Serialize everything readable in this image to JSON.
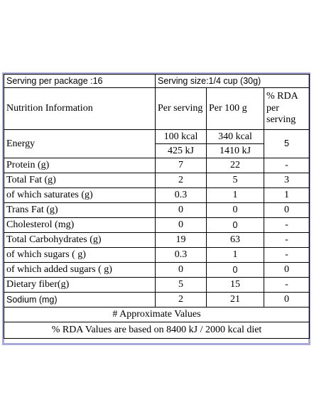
{
  "header": {
    "serving_per_package": "Serving per package :16",
    "serving_size": "Serving size:1/4 cup (30g)"
  },
  "columns": {
    "nutrition_information": "Nutrition Information",
    "per_serving": "Per serving",
    "per_100g": "Per 100 g",
    "rda": "% RDA per serving"
  },
  "energy": {
    "label": "Energy",
    "serving_kcal": "100 kcal",
    "serving_kj": "425 kJ",
    "per100_kcal": "340 kcal",
    "per100_kj": "1410 kJ",
    "rda": "5"
  },
  "rows": [
    {
      "label": "Protein (g)",
      "serving": "7",
      "per100": "22",
      "rda": "-"
    },
    {
      "label": "Total Fat (g)",
      "serving": "2",
      "per100": "5",
      "rda": "3"
    },
    {
      "label": "of which saturates (g)",
      "serving": "0.3",
      "per100": "1",
      "rda": "1"
    },
    {
      "label": "Trans Fat (g)",
      "serving": "0",
      "per100": "0",
      "rda": "0"
    },
    {
      "label": "Cholesterol (mg)",
      "serving": "0",
      "per100": "0",
      "rda": "-"
    },
    {
      "label": "Total Carbohydrates (g)",
      "serving": "19",
      "per100": "63",
      "rda": "-"
    },
    {
      "label": "of which sugars ( g)",
      "serving": "0.3",
      "per100": "1",
      "rda": "-"
    },
    {
      "label": "of which added sugars ( g)",
      "serving": "0",
      "per100": "0",
      "rda": "0"
    },
    {
      "label": "Dietary fiber(g)",
      "serving": "5",
      "per100": "15",
      "rda": "-"
    },
    {
      "label": "Sodium  (mg)",
      "serving": "2",
      "per100": "21",
      "rda": "0"
    }
  ],
  "footnotes": {
    "approximate": "# Approximate Values",
    "rda_basis": "% RDA Values are based on 8400 kJ / 2000 kcal diet"
  },
  "colors": {
    "frame_border": "#a9a8da"
  }
}
